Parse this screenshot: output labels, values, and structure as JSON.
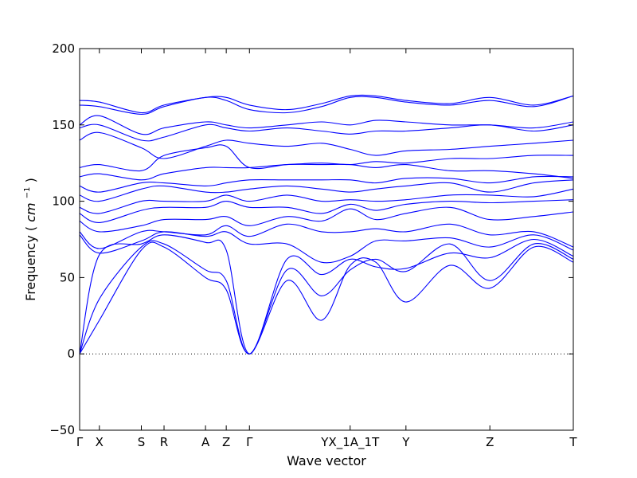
{
  "chart_data": {
    "type": "line",
    "xlabel": "Wave vector",
    "ylabel": "Frequency",
    "ylabel_unit_main": "cm",
    "ylabel_unit_exp": "−1",
    "ylim": [
      -50,
      200
    ],
    "yticks": [
      -50,
      0,
      50,
      100,
      150,
      200
    ],
    "ytick_labels": [
      "−50",
      "0",
      "50",
      "100",
      "150",
      "200"
    ],
    "xlim": [
      0,
      1
    ],
    "grid": false,
    "zero_line": "dotted",
    "line_color": "#0000ff",
    "kpoints": [
      {
        "label": "Γ",
        "x": 0.0
      },
      {
        "label": "X",
        "x": 0.04
      },
      {
        "label": "S",
        "x": 0.125
      },
      {
        "label": "R",
        "x": 0.171
      },
      {
        "label": "A",
        "x": 0.255
      },
      {
        "label": "Z",
        "x": 0.297
      },
      {
        "label": "Γ",
        "x": 0.344
      },
      {
        "label": "YX_1A_1T",
        "x": 0.548
      },
      {
        "label": "Y",
        "x": 0.661
      },
      {
        "label": "Z",
        "x": 0.831
      },
      {
        "label": "T",
        "x": 1.0
      }
    ],
    "series": [
      {
        "x": [
          0,
          0.04,
          0.125,
          0.171,
          0.255,
          0.297,
          0.344,
          0.42,
          0.49,
          0.548,
          0.6,
          0.661,
          0.75,
          0.831,
          0.92,
          1
        ],
        "values": [
          0,
          22,
          68,
          70,
          50,
          42,
          0,
          48,
          22,
          58,
          60,
          34,
          58,
          43,
          70,
          60
        ]
      },
      {
        "x": [
          0,
          0.04,
          0.125,
          0.171,
          0.255,
          0.297,
          0.344,
          0.42,
          0.49,
          0.548,
          0.6,
          0.661,
          0.75,
          0.831,
          0.92,
          1
        ],
        "values": [
          0,
          36,
          70,
          72,
          55,
          48,
          0,
          55,
          38,
          55,
          62,
          54,
          72,
          48,
          72,
          62
        ]
      },
      {
        "x": [
          0,
          0.04,
          0.125,
          0.171,
          0.255,
          0.297,
          0.344,
          0.42,
          0.49,
          0.548,
          0.6,
          0.661,
          0.75,
          0.831,
          0.92,
          1
        ],
        "values": [
          0,
          65,
          72,
          78,
          73,
          68,
          0,
          62,
          52,
          62,
          57,
          56,
          66,
          63,
          75,
          64
        ]
      },
      {
        "x": [
          0,
          0.04,
          0.125,
          0.171,
          0.255,
          0.297,
          0.344,
          0.42,
          0.49,
          0.548,
          0.6,
          0.661,
          0.75,
          0.831,
          0.92,
          1
        ],
        "values": [
          78,
          66,
          74,
          80,
          77,
          80,
          72,
          72,
          60,
          64,
          74,
          74,
          76,
          70,
          78,
          68
        ]
      },
      {
        "x": [
          0,
          0.04,
          0.125,
          0.171,
          0.255,
          0.297,
          0.344,
          0.42,
          0.49,
          0.548,
          0.6,
          0.661,
          0.75,
          0.831,
          0.92,
          1
        ],
        "values": [
          80,
          69,
          80,
          80,
          78,
          84,
          77,
          85,
          80,
          80,
          82,
          80,
          85,
          78,
          80,
          70
        ]
      },
      {
        "x": [
          0,
          0.04,
          0.125,
          0.171,
          0.255,
          0.297,
          0.344,
          0.42,
          0.49,
          0.548,
          0.6,
          0.661,
          0.75,
          0.831,
          0.92,
          1
        ],
        "values": [
          87,
          80,
          84,
          88,
          88,
          90,
          84,
          90,
          87,
          95,
          88,
          92,
          96,
          88,
          90,
          93
        ]
      },
      {
        "x": [
          0,
          0.04,
          0.125,
          0.171,
          0.255,
          0.297,
          0.344,
          0.42,
          0.49,
          0.548,
          0.6,
          0.661,
          0.75,
          0.831,
          0.92,
          1
        ],
        "values": [
          92,
          86,
          94,
          96,
          96,
          100,
          96,
          96,
          92,
          98,
          94,
          98,
          100,
          99,
          100,
          101
        ]
      },
      {
        "x": [
          0,
          0.04,
          0.125,
          0.171,
          0.255,
          0.297,
          0.344,
          0.42,
          0.49,
          0.548,
          0.6,
          0.661,
          0.75,
          0.831,
          0.92,
          1
        ],
        "values": [
          96,
          92,
          100,
          100,
          100,
          104,
          100,
          104,
          100,
          101,
          100,
          101,
          104,
          104,
          103,
          108
        ]
      },
      {
        "x": [
          0,
          0.04,
          0.125,
          0.171,
          0.255,
          0.297,
          0.344,
          0.42,
          0.49,
          0.548,
          0.6,
          0.661,
          0.75,
          0.831,
          0.92,
          1
        ],
        "values": [
          104,
          100,
          108,
          110,
          106,
          106,
          108,
          110,
          108,
          106,
          108,
          110,
          112,
          106,
          112,
          114
        ]
      },
      {
        "x": [
          0,
          0.04,
          0.125,
          0.171,
          0.255,
          0.297,
          0.344,
          0.42,
          0.49,
          0.548,
          0.6,
          0.661,
          0.75,
          0.831,
          0.92,
          1
        ],
        "values": [
          110,
          106,
          112,
          112,
          110,
          112,
          114,
          114,
          114,
          114,
          112,
          115,
          115,
          112,
          116,
          116
        ]
      },
      {
        "x": [
          0,
          0.04,
          0.125,
          0.171,
          0.255,
          0.297,
          0.344,
          0.42,
          0.49,
          0.548,
          0.6,
          0.661,
          0.75,
          0.831,
          0.92,
          1
        ],
        "values": [
          116,
          118,
          114,
          118,
          122,
          122,
          122,
          124,
          124,
          124,
          122,
          124,
          120,
          120,
          118,
          115
        ]
      },
      {
        "x": [
          0,
          0.04,
          0.125,
          0.171,
          0.255,
          0.297,
          0.344,
          0.42,
          0.49,
          0.548,
          0.6,
          0.661,
          0.75,
          0.831,
          0.92,
          1
        ],
        "values": [
          122,
          124,
          120,
          130,
          135,
          136,
          122,
          124,
          125,
          124,
          126,
          125,
          128,
          128,
          130,
          130
        ]
      },
      {
        "x": [
          0,
          0.04,
          0.125,
          0.171,
          0.255,
          0.297,
          0.344,
          0.42,
          0.49,
          0.548,
          0.6,
          0.661,
          0.75,
          0.831,
          0.92,
          1
        ],
        "values": [
          140,
          145,
          135,
          128,
          136,
          140,
          138,
          136,
          138,
          134,
          130,
          133,
          134,
          136,
          138,
          140
        ]
      },
      {
        "x": [
          0,
          0.04,
          0.125,
          0.171,
          0.255,
          0.297,
          0.344,
          0.42,
          0.49,
          0.548,
          0.6,
          0.661,
          0.75,
          0.831,
          0.92,
          1
        ],
        "values": [
          148,
          150,
          140,
          142,
          150,
          148,
          146,
          148,
          146,
          144,
          146,
          146,
          148,
          150,
          146,
          150
        ]
      },
      {
        "x": [
          0,
          0.04,
          0.125,
          0.171,
          0.255,
          0.297,
          0.344,
          0.42,
          0.49,
          0.548,
          0.6,
          0.661,
          0.75,
          0.831,
          0.92,
          1
        ],
        "values": [
          150,
          156,
          144,
          148,
          152,
          150,
          148,
          150,
          152,
          150,
          153,
          152,
          150,
          150,
          148,
          152
        ]
      },
      {
        "x": [
          0,
          0.04,
          0.125,
          0.171,
          0.255,
          0.297,
          0.344,
          0.42,
          0.49,
          0.548,
          0.6,
          0.661,
          0.75,
          0.831,
          0.92,
          1
        ],
        "values": [
          163,
          162,
          157,
          162,
          168,
          166,
          160,
          158,
          162,
          168,
          168,
          165,
          163,
          166,
          162,
          169
        ]
      },
      {
        "x": [
          0,
          0.04,
          0.125,
          0.171,
          0.255,
          0.297,
          0.344,
          0.42,
          0.49,
          0.548,
          0.6,
          0.661,
          0.75,
          0.831,
          0.92,
          1
        ],
        "values": [
          166,
          165,
          158,
          163,
          168,
          168,
          163,
          160,
          164,
          169,
          169,
          166,
          164,
          168,
          163,
          169
        ]
      }
    ]
  }
}
